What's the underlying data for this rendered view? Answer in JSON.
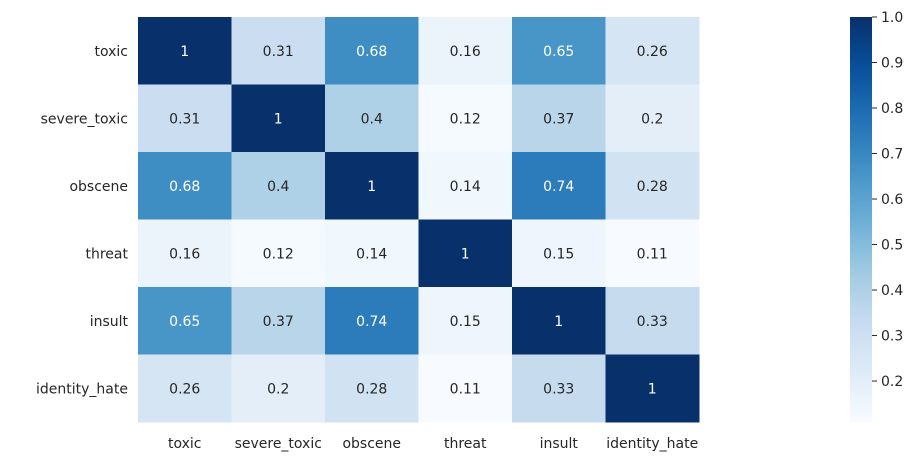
{
  "chart_data": {
    "type": "heatmap",
    "title": "",
    "xlabel": "",
    "ylabel": "",
    "x_categories": [
      "toxic",
      "severe_toxic",
      "obscene",
      "threat",
      "insult",
      "identity_hate"
    ],
    "y_categories": [
      "toxic",
      "severe_toxic",
      "obscene",
      "threat",
      "insult",
      "identity_hate"
    ],
    "values": [
      [
        1,
        0.31,
        0.68,
        0.16,
        0.65,
        0.26
      ],
      [
        0.31,
        1,
        0.4,
        0.12,
        0.37,
        0.2
      ],
      [
        0.68,
        0.4,
        1,
        0.14,
        0.74,
        0.28
      ],
      [
        0.16,
        0.12,
        0.14,
        1,
        0.15,
        0.11
      ],
      [
        0.65,
        0.37,
        0.74,
        0.15,
        1,
        0.33
      ],
      [
        0.26,
        0.2,
        0.28,
        0.11,
        0.33,
        1
      ]
    ],
    "colormap": "Blues",
    "colorbar": {
      "range": [
        0.11,
        1.0
      ],
      "ticks": [
        0.2,
        0.3,
        0.4,
        0.5,
        0.6,
        0.7,
        0.8,
        0.9,
        1.0
      ],
      "tick_labels": [
        "0.2",
        "0.3",
        "0.4",
        "0.5",
        "0.6",
        "0.7",
        "0.8",
        "0.9",
        "1.0"
      ]
    },
    "annotations": true,
    "legend": "colorbar-right"
  },
  "colors": {
    "label_text": "#262626",
    "annot_dark": "#262626",
    "annot_light": "#ffffff"
  }
}
